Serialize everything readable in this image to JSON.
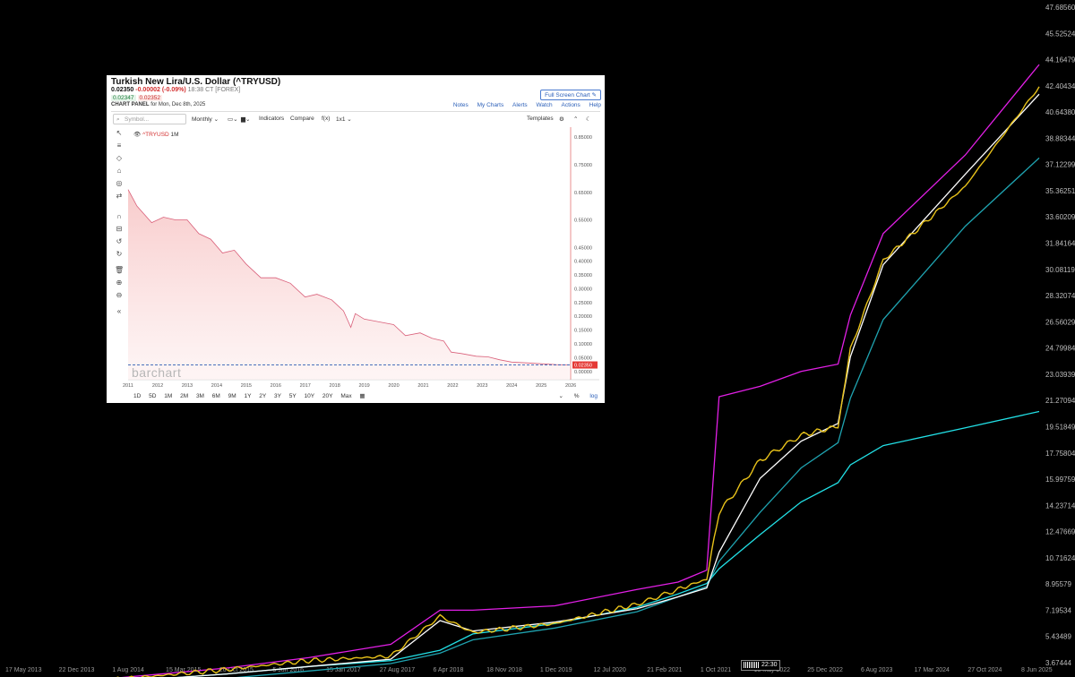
{
  "background_chart": {
    "y_ticks": [
      "47.68560",
      "45.52524",
      "44.16479",
      "42.40434",
      "40.64380",
      "38.88344",
      "37.12299",
      "35.36251",
      "33.60209",
      "31.84164",
      "30.08119",
      "28.32074",
      "26.56029",
      "24.79984",
      "23.03939",
      "21.27094",
      "19.51849",
      "17.75804",
      "15.99759",
      "14.23714",
      "12.47669",
      "10.71624",
      "8.95579",
      "7.19534",
      "5.43489",
      "3.67444"
    ],
    "x_ticks": [
      "17 May 2013",
      "22 Dec 2013",
      "1 Aug 2014",
      "15 Mar 2015",
      "26 Oct 2015",
      "5 Jun 2016",
      "15 Jan 2017",
      "27 Aug 2017",
      "6 Apr 2018",
      "18 Nov 2018",
      "1 Dec 2019",
      "12 Jul 2020",
      "21 Feb 2021",
      "1 Oct 2021",
      "15 May 2022",
      "25 Dec 2022",
      "6 Aug 2023",
      "17 Mar 2024",
      "27 Oct 2024",
      "8 Jun 2025"
    ],
    "colors": {
      "background": "#000000",
      "price": "#e8c21a",
      "magenta": "#e21fe6",
      "cyan": "#22e0e6",
      "teal": "#1fa3b0",
      "white": "#ffffff"
    },
    "clock_label": "22:30"
  },
  "panel": {
    "title": "Turkish New Lira/U.S. Dollar (^TRYUSD)",
    "last": "0.02350",
    "change": "-0.00002 (-0.09%)",
    "meta": "18:38 CT [FOREX]",
    "bid": "0.02347",
    "ask": "0.02352",
    "chart_panel_label": "CHART PANEL",
    "chart_panel_date": "for Mon, Dec 8th, 2025",
    "full_screen": "Full Screen Chart",
    "links": [
      "Notes",
      "My Charts",
      "Alerts",
      "Watch",
      "Actions",
      "Help"
    ],
    "toolbar": {
      "search_placeholder": "Symbol...",
      "interval": "Monthly",
      "indicators": "Indicators",
      "compare": "Compare",
      "fx": "f(x)",
      "layout": "1x1",
      "templates": "Templates"
    },
    "legend_symbol": "^TRYUSD",
    "legend_interval": "1M",
    "watermark": "barchart",
    "ranges": [
      "1D",
      "5D",
      "1M",
      "2M",
      "3M",
      "6M",
      "9M",
      "1Y",
      "2Y",
      "3Y",
      "5Y",
      "10Y",
      "20Y",
      "Max"
    ],
    "bottom_right": [
      "%",
      "log"
    ],
    "price_badge": "0.02350"
  },
  "chart_data": [
    {
      "type": "line",
      "title": "",
      "xlabel": "",
      "ylabel": "",
      "x": [
        2013.37,
        2014.0,
        2015.0,
        2016.0,
        2017.0,
        2018.0,
        2018.6,
        2019.0,
        2020.0,
        2021.0,
        2021.5,
        2021.85,
        2022.0,
        2022.5,
        2023.0,
        2023.45,
        2023.6,
        2024.0,
        2025.0,
        2025.9
      ],
      "ylim": [
        3.0,
        47.69
      ],
      "series": [
        {
          "values": [
            1.8,
            1.9,
            2.4,
            2.9,
            3.5,
            3.8,
            6.5,
            5.4,
            6.0,
            7.3,
            8.3,
            9.0,
            13.5,
            17.0,
            18.7,
            19.3,
            24.5,
            30.5,
            35.5,
            42.2
          ]
        },
        {
          "values": [
            1.8,
            2.0,
            2.5,
            3.0,
            3.7,
            4.6,
            6.9,
            6.9,
            7.2,
            8.3,
            8.8,
            9.6,
            21.3,
            22.0,
            23.0,
            23.5,
            26.8,
            32.3,
            37.6,
            43.7
          ]
        },
        {
          "values": [
            1.8,
            1.9,
            2.2,
            2.6,
            3.1,
            3.5,
            4.2,
            5.3,
            6.0,
            7.1,
            8.0,
            8.7,
            9.7,
            12.0,
            14.2,
            15.5,
            16.7,
            18.0,
            19.2,
            20.3
          ]
        },
        {
          "values": [
            1.8,
            1.85,
            2.0,
            2.3,
            2.8,
            3.3,
            4.0,
            4.9,
            5.7,
            6.8,
            7.8,
            8.5,
            10.2,
            13.5,
            16.5,
            18.2,
            21.2,
            26.5,
            32.8,
            37.4
          ]
        },
        {
          "values": [
            1.8,
            1.9,
            2.2,
            2.6,
            3.1,
            3.6,
            6.2,
            5.5,
            6.1,
            7.0,
            7.8,
            8.4,
            10.8,
            15.8,
            18.3,
            19.5,
            24.0,
            30.2,
            36.3,
            41.7
          ]
        }
      ]
    },
    {
      "type": "area",
      "title": "Turkish New Lira/U.S. Dollar (^TRYUSD)",
      "xlabel": "",
      "ylabel": "",
      "x_ticks": [
        "2011",
        "2012",
        "2013",
        "2014",
        "2015",
        "2016",
        "2017",
        "2018",
        "2019",
        "2020",
        "2021",
        "2022",
        "2023",
        "2024",
        "2025",
        "2026"
      ],
      "y_ticks": [
        "0.85000",
        "0.75000",
        "0.65000",
        "0.55000",
        "0.45000",
        "0.40000",
        "0.35000",
        "0.30000",
        "0.25000",
        "0.20000",
        "0.15000",
        "0.10000",
        "0.05000",
        "0.00000"
      ],
      "x": [
        2011.0,
        2011.3,
        2011.8,
        2012.2,
        2012.6,
        2013.0,
        2013.4,
        2013.8,
        2014.2,
        2014.6,
        2015.0,
        2015.5,
        2016.0,
        2016.5,
        2017.0,
        2017.4,
        2017.9,
        2018.3,
        2018.55,
        2018.7,
        2019.0,
        2019.5,
        2020.0,
        2020.4,
        2020.9,
        2021.3,
        2021.7,
        2021.95,
        2022.3,
        2022.8,
        2023.2,
        2023.6,
        2024.0,
        2024.5,
        2025.0,
        2025.5,
        2025.95
      ],
      "values": [
        0.66,
        0.6,
        0.54,
        0.56,
        0.55,
        0.55,
        0.5,
        0.48,
        0.43,
        0.44,
        0.39,
        0.34,
        0.34,
        0.32,
        0.27,
        0.28,
        0.26,
        0.22,
        0.16,
        0.21,
        0.19,
        0.18,
        0.17,
        0.13,
        0.14,
        0.12,
        0.11,
        0.07,
        0.065,
        0.055,
        0.053,
        0.042,
        0.034,
        0.031,
        0.028,
        0.025,
        0.0235
      ],
      "ylim": [
        -0.03,
        0.88
      ],
      "last_value": 0.0235
    }
  ]
}
